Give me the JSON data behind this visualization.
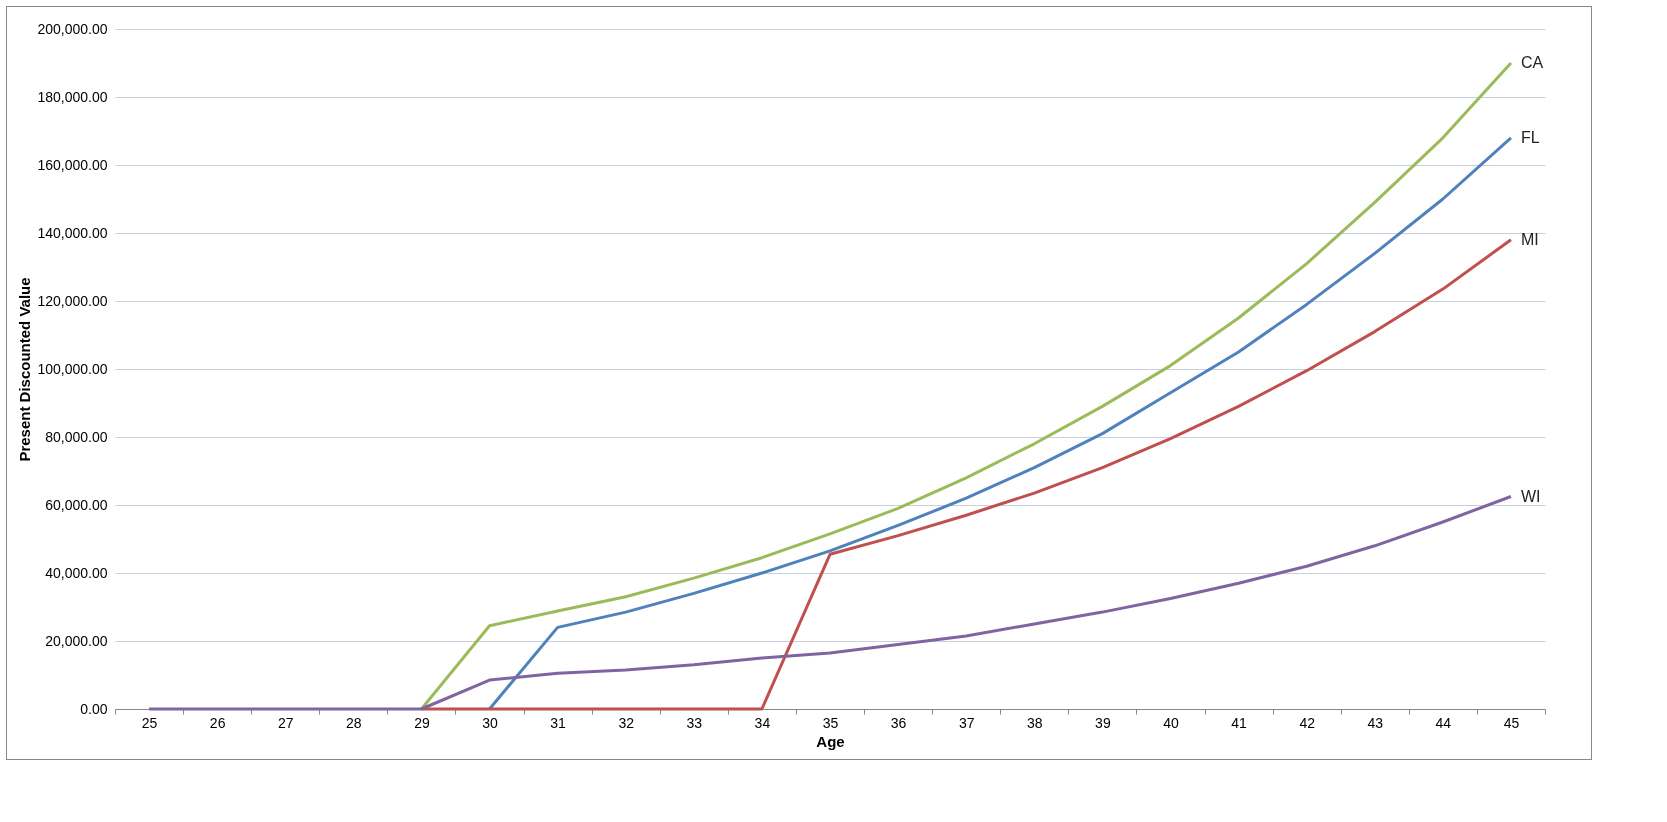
{
  "chart_data": {
    "type": "line",
    "xlabel": "Age",
    "ylabel": "Present Discounted Value",
    "categories": [
      "25",
      "26",
      "27",
      "28",
      "29",
      "30",
      "31",
      "32",
      "33",
      "34",
      "35",
      "36",
      "37",
      "38",
      "39",
      "40",
      "41",
      "42",
      "43",
      "44",
      "45"
    ],
    "series": [
      {
        "name": "CA",
        "color": "#9bbb59",
        "values": [
          null,
          null,
          null,
          null,
          0,
          24500,
          28800,
          33000,
          38500,
          44500,
          51500,
          59000,
          68000,
          78000,
          89000,
          101000,
          115000,
          131000,
          149000,
          168000,
          190000
        ]
      },
      {
        "name": "FL",
        "color": "#4f81bd",
        "values": [
          null,
          null,
          null,
          null,
          null,
          0,
          24000,
          28500,
          34000,
          40000,
          46500,
          54000,
          62000,
          71000,
          81000,
          93000,
          105000,
          119000,
          134000,
          150000,
          168000
        ]
      },
      {
        "name": "MI",
        "color": "#c0504d",
        "values": [
          null,
          null,
          null,
          null,
          0,
          0,
          0,
          0,
          0,
          0,
          45500,
          51000,
          57000,
          63500,
          71000,
          79500,
          89000,
          99500,
          111000,
          123500,
          138000
        ]
      },
      {
        "name": "WI",
        "color": "#8064a2",
        "values": [
          0,
          0,
          0,
          0,
          0,
          8500,
          10500,
          11500,
          13000,
          15000,
          16500,
          19000,
          21500,
          25000,
          28500,
          32500,
          37000,
          42000,
          48000,
          55000,
          62500
        ]
      }
    ],
    "ylim": [
      0,
      200000
    ],
    "yticks": [
      {
        "value": 0,
        "label": "0.00"
      },
      {
        "value": 20000,
        "label": "20,000.00"
      },
      {
        "value": 40000,
        "label": "40,000.00"
      },
      {
        "value": 60000,
        "label": "60,000.00"
      },
      {
        "value": 80000,
        "label": "80,000.00"
      },
      {
        "value": 100000,
        "label": "100,000.00"
      },
      {
        "value": 120000,
        "label": "120,000.00"
      },
      {
        "value": 140000,
        "label": "140,000.00"
      },
      {
        "value": 160000,
        "label": "160,000.00"
      },
      {
        "value": 180000,
        "label": "180,000.00"
      },
      {
        "value": 200000,
        "label": "200,000.00"
      }
    ],
    "grid": "y",
    "legend": false,
    "marker": "none",
    "line_style": "solid"
  }
}
